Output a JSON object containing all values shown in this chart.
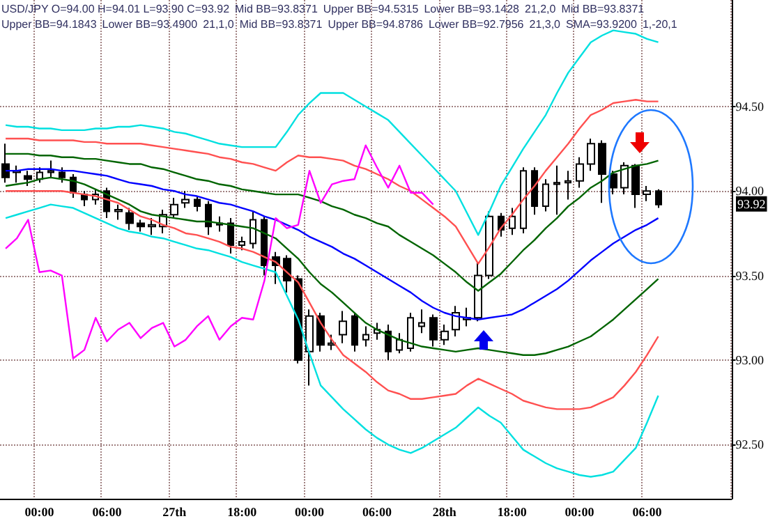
{
  "chart_data": {
    "type": "candlestick",
    "color": "#000000",
    "categories": [
      null,
      null,
      null,
      "00:00",
      null,
      null,
      null,
      null,
      null,
      "06:00",
      null,
      null,
      null,
      null,
      null,
      "27th",
      null,
      null,
      null,
      null,
      null,
      "18:00",
      null,
      null,
      null,
      null,
      null,
      "00:00",
      null,
      null,
      null,
      null,
      null,
      "06:00",
      null,
      null,
      null,
      null,
      null,
      "28th",
      null,
      null,
      null,
      null,
      null,
      "18:00",
      null,
      null,
      null,
      null,
      null,
      "00:00",
      null,
      null,
      null,
      null,
      null,
      "06:00",
      null
    ],
    "ohlc": [
      [
        94.16,
        94.28,
        94.05,
        94.08
      ],
      [
        94.11,
        94.15,
        94.05,
        94.12
      ],
      [
        94.09,
        94.12,
        94.03,
        94.07
      ],
      [
        94.07,
        94.14,
        94.05,
        94.11
      ],
      [
        94.11,
        94.18,
        94.08,
        94.12
      ],
      [
        94.11,
        94.14,
        94.05,
        94.08
      ],
      [
        94.08,
        94.1,
        93.96,
        93.99
      ],
      [
        93.98,
        94.0,
        93.91,
        93.95
      ],
      [
        93.95,
        94.01,
        93.92,
        93.98
      ],
      [
        94.0,
        94.02,
        93.84,
        93.88
      ],
      [
        93.88,
        93.92,
        93.83,
        93.89
      ],
      [
        93.87,
        93.9,
        93.77,
        93.81
      ],
      [
        93.81,
        93.83,
        93.76,
        93.79
      ],
      [
        93.79,
        93.84,
        93.74,
        93.8
      ],
      [
        93.79,
        93.89,
        93.75,
        93.86
      ],
      [
        93.86,
        93.96,
        93.84,
        93.92
      ],
      [
        93.93,
        94.0,
        93.9,
        93.95
      ],
      [
        93.95,
        93.97,
        93.88,
        93.91
      ],
      [
        93.92,
        93.94,
        93.74,
        93.79
      ],
      [
        93.8,
        93.85,
        93.76,
        93.81
      ],
      [
        93.81,
        93.84,
        93.63,
        93.68
      ],
      [
        93.68,
        93.73,
        93.65,
        93.7
      ],
      [
        93.69,
        93.88,
        93.66,
        93.83
      ],
      [
        93.83,
        93.85,
        93.5,
        93.56
      ],
      [
        93.61,
        93.64,
        93.45,
        93.56
      ],
      [
        93.6,
        93.62,
        93.4,
        93.47
      ],
      [
        93.48,
        93.5,
        92.98,
        93.0
      ],
      [
        93.05,
        93.3,
        92.85,
        93.26
      ],
      [
        93.26,
        93.28,
        93.05,
        93.09
      ],
      [
        93.09,
        93.15,
        93.06,
        93.1
      ],
      [
        93.15,
        93.29,
        93.1,
        93.23
      ],
      [
        93.26,
        93.28,
        93.05,
        93.09
      ],
      [
        93.12,
        93.2,
        93.08,
        93.15
      ],
      [
        93.16,
        93.22,
        93.12,
        93.18
      ],
      [
        93.17,
        93.21,
        93.0,
        93.05
      ],
      [
        93.06,
        93.16,
        93.04,
        93.12
      ],
      [
        93.07,
        93.28,
        93.05,
        93.25
      ],
      [
        93.2,
        93.3,
        93.16,
        93.22
      ],
      [
        93.25,
        93.27,
        93.08,
        93.12
      ],
      [
        93.12,
        93.21,
        93.09,
        93.17
      ],
      [
        93.18,
        93.32,
        93.14,
        93.28
      ],
      [
        93.24,
        93.31,
        93.2,
        93.25
      ],
      [
        93.25,
        93.58,
        93.23,
        93.5
      ],
      [
        93.5,
        93.88,
        93.48,
        93.85
      ],
      [
        93.85,
        93.87,
        93.73,
        93.77
      ],
      [
        93.78,
        93.9,
        93.74,
        93.85
      ],
      [
        93.78,
        94.14,
        93.75,
        94.12
      ],
      [
        94.12,
        94.14,
        93.86,
        93.91
      ],
      [
        93.91,
        94.07,
        93.88,
        94.04
      ],
      [
        94.04,
        94.15,
        93.86,
        94.05
      ],
      [
        94.05,
        94.12,
        93.95,
        94.06
      ],
      [
        94.06,
        94.2,
        94.02,
        94.16
      ],
      [
        94.16,
        94.31,
        94.12,
        94.28
      ],
      [
        94.28,
        94.3,
        93.93,
        94.1
      ],
      [
        94.1,
        94.12,
        93.98,
        94.02
      ],
      [
        94.02,
        94.17,
        93.98,
        94.15
      ],
      [
        94.15,
        94.16,
        93.9,
        93.98
      ],
      [
        93.98,
        94.03,
        93.94,
        94.0
      ],
      [
        94.0,
        94.01,
        93.9,
        93.92
      ]
    ],
    "series": [
      {
        "type": "line",
        "color": "#00e0e0",
        "values": [
          94.39,
          94.38,
          94.38,
          94.37,
          94.37,
          94.36,
          94.36,
          94.36,
          94.37,
          94.37,
          94.38,
          94.38,
          94.39,
          94.38,
          94.37,
          94.35,
          94.34,
          94.32,
          94.3,
          94.28,
          94.27,
          94.26,
          94.26,
          94.26,
          94.26,
          94.35,
          94.45,
          94.52,
          94.58,
          94.58,
          94.58,
          94.54,
          94.5,
          94.46,
          94.42,
          94.35,
          94.28,
          94.21,
          94.14,
          94.07,
          94.0,
          93.87,
          93.74,
          93.88,
          94.03,
          94.14,
          94.25,
          94.35,
          94.45,
          94.58,
          94.7,
          94.79,
          94.88,
          94.92,
          94.95,
          94.94,
          94.93,
          94.9,
          94.88
        ]
      },
      {
        "type": "line",
        "color": "#ff5050",
        "values": [
          94.31,
          94.31,
          94.31,
          94.3,
          94.3,
          94.3,
          94.3,
          94.29,
          94.29,
          94.28,
          94.28,
          94.28,
          94.28,
          94.27,
          94.26,
          94.25,
          94.24,
          94.23,
          94.22,
          94.2,
          94.19,
          94.17,
          94.16,
          94.14,
          94.12,
          94.17,
          94.21,
          94.2,
          94.2,
          94.19,
          94.18,
          94.15,
          94.13,
          94.1,
          94.07,
          94.03,
          94.0,
          93.95,
          93.9,
          93.85,
          93.79,
          93.68,
          93.57,
          93.67,
          93.78,
          93.86,
          93.95,
          94.03,
          94.12,
          94.2,
          94.28,
          94.37,
          94.45,
          94.48,
          94.52,
          94.53,
          94.54,
          94.53,
          94.53
        ]
      },
      {
        "type": "line",
        "color": "#006400",
        "values": [
          94.22,
          94.22,
          94.22,
          94.21,
          94.21,
          94.2,
          94.2,
          94.19,
          94.19,
          94.18,
          94.17,
          94.16,
          94.16,
          94.14,
          94.13,
          94.11,
          94.09,
          94.07,
          94.06,
          94.04,
          94.03,
          94.01,
          94.0,
          93.99,
          93.98,
          93.98,
          93.98,
          93.96,
          93.94,
          93.91,
          93.89,
          93.86,
          93.84,
          93.81,
          93.79,
          93.74,
          93.7,
          93.66,
          93.62,
          93.57,
          93.52,
          93.46,
          93.41,
          93.46,
          93.51,
          93.58,
          93.65,
          93.71,
          93.78,
          93.84,
          93.91,
          93.96,
          94.02,
          94.06,
          94.11,
          94.13,
          94.15,
          94.16,
          94.18
        ]
      },
      {
        "type": "line",
        "color": "#0000ff",
        "values": [
          94.12,
          94.12,
          94.13,
          94.13,
          94.13,
          94.12,
          94.12,
          94.11,
          94.1,
          94.09,
          94.07,
          94.05,
          94.04,
          94.03,
          94.01,
          94.0,
          93.98,
          93.97,
          93.95,
          93.93,
          93.92,
          93.9,
          93.88,
          93.85,
          93.83,
          93.8,
          93.77,
          93.73,
          93.7,
          93.67,
          93.63,
          93.6,
          93.56,
          93.52,
          93.48,
          93.44,
          93.4,
          93.35,
          93.31,
          93.28,
          93.26,
          93.25,
          93.24,
          93.25,
          93.26,
          93.27,
          93.3,
          93.34,
          93.38,
          93.42,
          93.47,
          93.53,
          93.59,
          93.64,
          93.69,
          93.73,
          93.77,
          93.8,
          93.84
        ]
      },
      {
        "type": "line",
        "color": "#006400",
        "values": [
          94.03,
          94.04,
          94.05,
          94.07,
          94.08,
          94.07,
          94.06,
          94.04,
          94.01,
          93.98,
          93.95,
          93.92,
          93.88,
          93.86,
          93.85,
          93.84,
          93.83,
          93.82,
          93.82,
          93.81,
          93.8,
          93.79,
          93.78,
          93.75,
          93.72,
          93.66,
          93.6,
          93.52,
          93.45,
          93.4,
          93.34,
          93.28,
          93.22,
          93.18,
          93.15,
          93.12,
          93.1,
          93.08,
          93.07,
          93.06,
          93.05,
          93.06,
          93.07,
          93.06,
          93.05,
          93.04,
          93.03,
          93.03,
          93.04,
          93.06,
          93.08,
          93.11,
          93.14,
          93.19,
          93.24,
          93.3,
          93.36,
          93.42,
          93.48
        ]
      },
      {
        "type": "line",
        "color": "#ff5050",
        "values": [
          94.0,
          94.0,
          94.0,
          94.0,
          94.0,
          94.0,
          93.99,
          93.98,
          93.97,
          93.95,
          93.93,
          93.89,
          93.85,
          93.83,
          93.8,
          93.78,
          93.75,
          93.74,
          93.72,
          93.7,
          93.67,
          93.66,
          93.64,
          93.61,
          93.58,
          93.52,
          93.46,
          93.34,
          93.22,
          93.12,
          93.03,
          92.98,
          92.93,
          92.87,
          92.82,
          92.8,
          92.77,
          92.77,
          92.78,
          92.79,
          92.8,
          92.85,
          92.89,
          92.86,
          92.83,
          92.8,
          92.76,
          92.74,
          92.72,
          92.71,
          92.71,
          92.71,
          92.72,
          92.75,
          92.78,
          92.85,
          92.93,
          93.03,
          93.14
        ]
      },
      {
        "type": "line",
        "color": "#00e0e0",
        "values": [
          93.84,
          93.86,
          93.88,
          93.9,
          93.92,
          93.91,
          93.9,
          93.87,
          93.84,
          93.81,
          93.78,
          93.76,
          93.75,
          93.73,
          93.72,
          93.7,
          93.68,
          93.66,
          93.65,
          93.63,
          93.61,
          93.58,
          93.56,
          93.54,
          93.52,
          93.38,
          93.24,
          93.04,
          92.85,
          92.78,
          92.71,
          92.65,
          92.59,
          92.54,
          92.5,
          92.47,
          92.45,
          92.48,
          92.52,
          92.56,
          92.6,
          92.66,
          92.72,
          92.67,
          92.63,
          92.55,
          92.47,
          92.43,
          92.39,
          92.36,
          92.34,
          92.32,
          92.31,
          92.32,
          92.34,
          92.41,
          92.48,
          92.63,
          92.79
        ]
      },
      {
        "type": "line",
        "color": "#ff00ff",
        "values": [
          93.66,
          93.72,
          93.83,
          93.52,
          93.53,
          93.5,
          93.01,
          93.06,
          93.25,
          93.11,
          93.18,
          93.22,
          93.13,
          93.19,
          93.22,
          93.08,
          93.12,
          93.2,
          93.26,
          93.12,
          93.2,
          93.25,
          93.24,
          93.47,
          93.84,
          93.78,
          93.8,
          94.12,
          93.93,
          94.04,
          94.06,
          94.07,
          94.27,
          94.14,
          94.02,
          94.15,
          93.99,
          93.99,
          93.92,
          null,
          null,
          null,
          null,
          null,
          null,
          null,
          null,
          null,
          null,
          null,
          null,
          null,
          null,
          null,
          null,
          null,
          null,
          null,
          null
        ]
      }
    ],
    "ylim": [
      92.18,
      95.13
    ],
    "yticks": [
      {
        "value": 92.5,
        "label": "92.50"
      },
      {
        "value": 93,
        "label": "93.00"
      },
      {
        "value": 93.5,
        "label": "93.50"
      },
      {
        "value": 94,
        "label": "94.00"
      },
      {
        "value": 94.5,
        "label": "94.50"
      }
    ],
    "grid": true,
    "annotations": [
      "USD/JPY O=94.00 H=94.01 L=93.90 C=93.92",
      "Mid BB=93.8371",
      "Upper BB=94.5315",
      "Lower BB=93.1428",
      "21,2,0",
      "Mid BB=93.8371",
      "Upper BB=94.1843",
      "Lower BB=93.4900",
      "21,1,0",
      "Mid BB=93.8371",
      "Upper BB=94.8786",
      "Lower BB=92.7956",
      "21,3,0",
      "SMA=93.9200",
      "1,-20,1",
      "93.92"
    ]
  }
}
